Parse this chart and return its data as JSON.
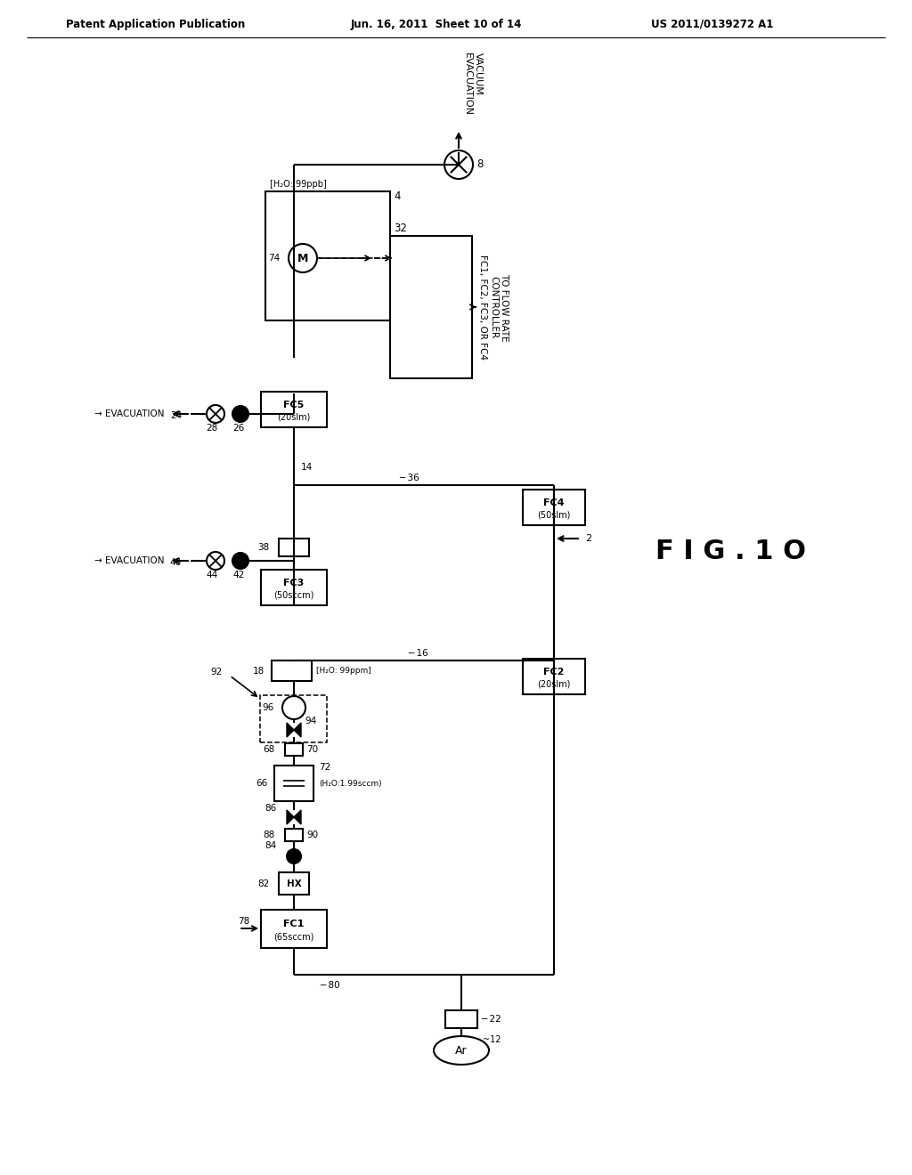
{
  "header_left": "Patent Application Publication",
  "header_center": "Jun. 16, 2011  Sheet 10 of 14",
  "header_right": "US 2011/0139272 A1",
  "fig_label": "F I G . 1 O",
  "bg_color": "#ffffff"
}
